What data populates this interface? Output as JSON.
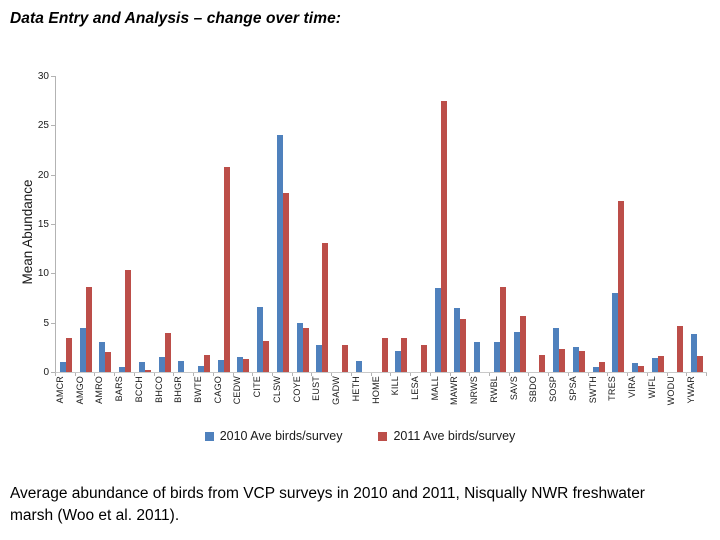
{
  "title": "Data Entry and Analysis – change over time:",
  "caption": "Average abundance of birds from VCP surveys in 2010 and 2011, Nisqually NWR freshwater marsh (Woo et al. 2011).",
  "chart_data": {
    "type": "bar",
    "title": "",
    "xlabel": "",
    "ylabel": "Mean Abundance",
    "ylim": [
      0,
      30
    ],
    "yticks": [
      0,
      5,
      10,
      15,
      20,
      25,
      30
    ],
    "grid": false,
    "legend_position": "bottom",
    "categories": [
      "AMCR",
      "AMGO",
      "AMRO",
      "BARS",
      "BCCH",
      "BHCO",
      "BHGR",
      "BWTE",
      "CAGO",
      "CEDW",
      "CITE",
      "CLSW",
      "COYE",
      "EUST",
      "GADW",
      "HETH",
      "HOME",
      "KILL",
      "LESA",
      "MALL",
      "MAWR",
      "NRWS",
      "RWBL",
      "SAVS",
      "SBDO",
      "SOSP",
      "SPSA",
      "SWTH",
      "TRES",
      "VIRA",
      "WIFL",
      "WODU",
      "YWAR"
    ],
    "series": [
      {
        "name": "2010 Ave birds/survey",
        "color": "#4f81bd",
        "values": [
          1.0,
          4.5,
          3.0,
          0.5,
          1.0,
          1.5,
          1.1,
          0.6,
          1.2,
          1.5,
          6.6,
          24.0,
          5.0,
          2.7,
          0,
          1.1,
          0,
          2.1,
          0,
          8.5,
          6.5,
          3.0,
          3.0,
          4.1,
          0,
          4.5,
          2.5,
          0.5,
          8.0,
          0.9,
          1.4,
          0,
          3.9
        ]
      },
      {
        "name": "2011 Ave birds/survey",
        "color": "#bc4e49",
        "values": [
          3.4,
          8.6,
          2.0,
          10.3,
          0.2,
          4.0,
          0,
          1.7,
          20.8,
          1.3,
          3.1,
          18.1,
          4.5,
          13.1,
          2.7,
          0,
          3.4,
          3.4,
          2.7,
          27.5,
          5.4,
          0,
          8.6,
          5.7,
          1.7,
          2.3,
          2.1,
          1.0,
          17.3,
          0.6,
          1.6,
          4.7,
          1.6
        ]
      }
    ]
  },
  "colors": {
    "axis_line": "#b3b3b3",
    "series_2010": "#4f81bd",
    "series_2011": "#bc4e49"
  }
}
